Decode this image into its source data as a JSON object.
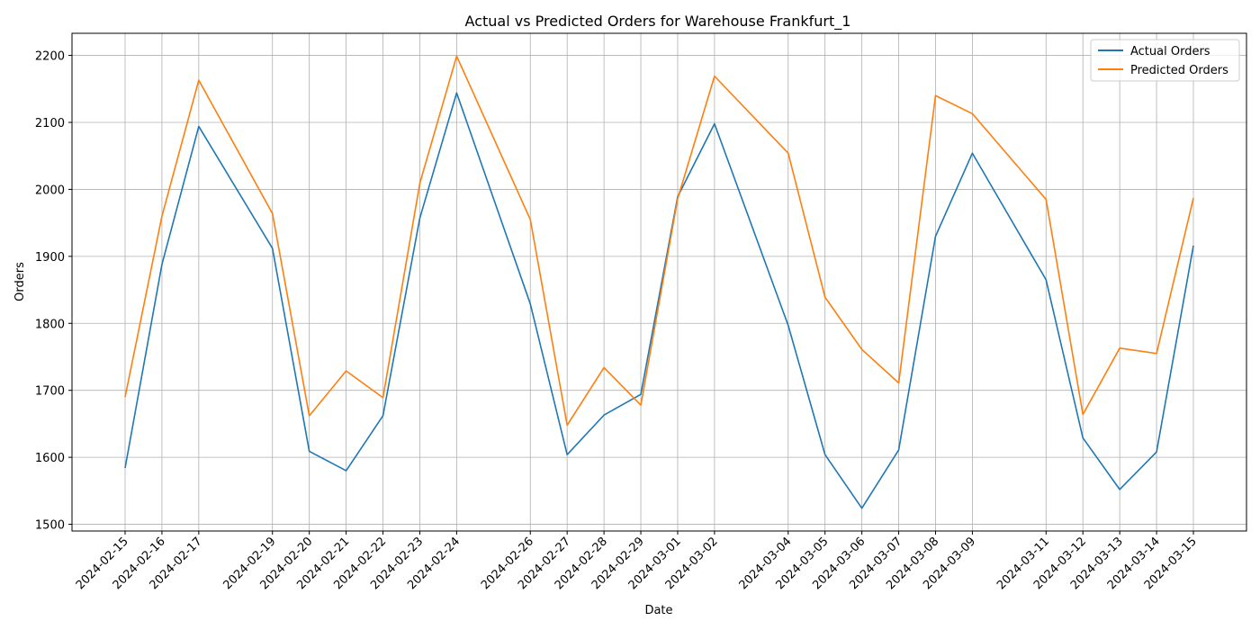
{
  "chart_data": {
    "type": "line",
    "title": "Actual vs Predicted Orders for Warehouse Frankfurt_1",
    "xlabel": "Date",
    "ylabel": "Orders",
    "ylim": [
      1490,
      2233
    ],
    "yticks": [
      1500,
      1600,
      1700,
      1800,
      1900,
      2000,
      2100,
      2200
    ],
    "grid": true,
    "legend_position": "top-right",
    "x": [
      "2024-02-15",
      "2024-02-16",
      "2024-02-17",
      "2024-02-19",
      "2024-02-20",
      "2024-02-21",
      "2024-02-22",
      "2024-02-23",
      "2024-02-24",
      "2024-02-26",
      "2024-02-27",
      "2024-02-28",
      "2024-02-29",
      "2024-03-01",
      "2024-03-02",
      "2024-03-04",
      "2024-03-05",
      "2024-03-06",
      "2024-03-07",
      "2024-03-08",
      "2024-03-09",
      "2024-03-11",
      "2024-03-12",
      "2024-03-13",
      "2024-03-14",
      "2024-03-15"
    ],
    "series": [
      {
        "name": "Actual Orders",
        "color": "#1f77b4",
        "values": [
          1584,
          1888,
          2094,
          1912,
          1609,
          1580,
          1662,
          1957,
          2144,
          1829,
          1604,
          1663,
          1694,
          1989,
          2098,
          1797,
          1604,
          1524,
          1611,
          1930,
          2054,
          1865,
          1629,
          1552,
          1608,
          1916
        ]
      },
      {
        "name": "Predicted Orders",
        "color": "#ff7f0e",
        "values": [
          1690,
          1960,
          2163,
          1964,
          1662,
          1729,
          1689,
          2009,
          2199,
          1955,
          1648,
          1734,
          1678,
          1986,
          2169,
          2054,
          1839,
          1761,
          1711,
          2140,
          2113,
          1985,
          1664,
          1763,
          1755,
          1987
        ]
      }
    ]
  }
}
